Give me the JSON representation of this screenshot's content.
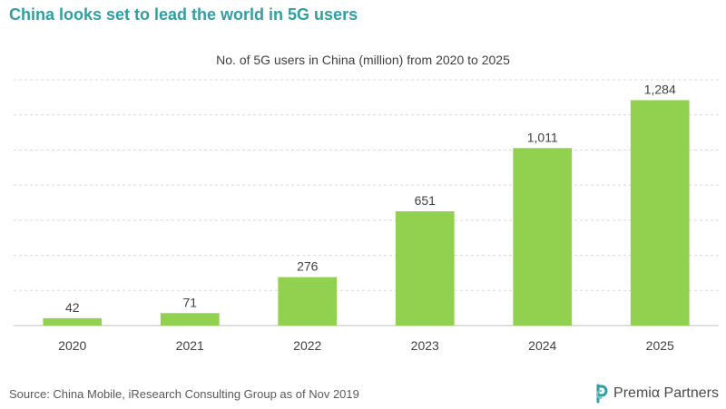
{
  "headline": "China looks set to lead the world in 5G users",
  "source": "Source: China Mobile, iResearch Consulting Group as of Nov 2019",
  "brand": {
    "name": "Premiα Partners",
    "logo_icon": "premia-logo-icon",
    "color": "#2f9fa3"
  },
  "colors": {
    "bar": "#92d050",
    "grid": "#d9d9d9",
    "axis": "#bfbfbf",
    "headline": "#2f9fa3"
  },
  "chart_data": {
    "type": "bar",
    "title": "No. of 5G users in China (million) from 2020 to 2025",
    "categories": [
      "2020",
      "2021",
      "2022",
      "2023",
      "2024",
      "2025"
    ],
    "values": [
      42,
      71,
      276,
      651,
      1011,
      1284
    ],
    "value_labels": [
      "42",
      "71",
      "276",
      "651",
      "1,011",
      "1,284"
    ],
    "ylim": [
      0,
      1400
    ],
    "grid": true,
    "legend": "none"
  }
}
